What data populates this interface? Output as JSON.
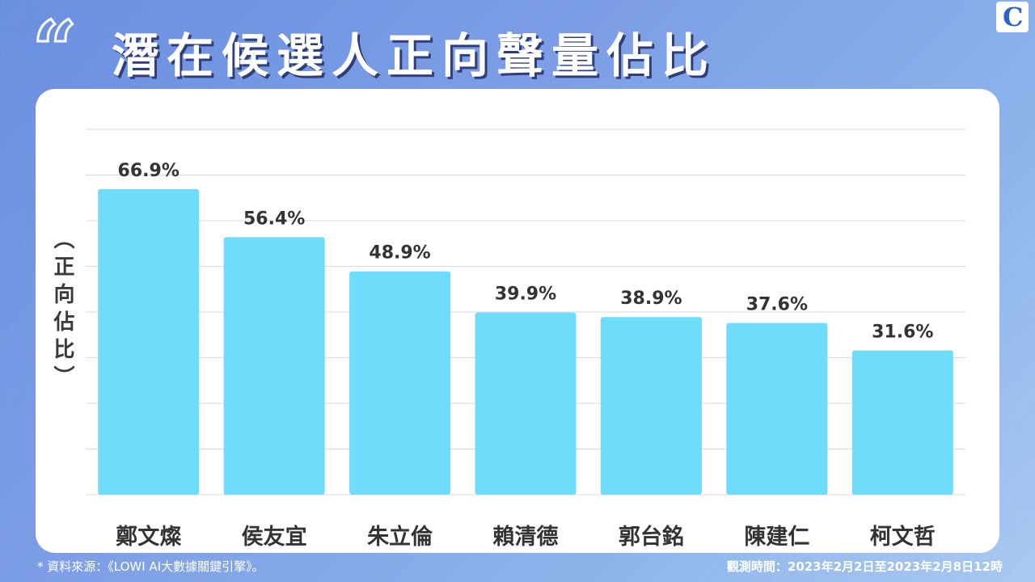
{
  "header": {
    "quote_mark": "“",
    "title": "潛在候選人正向聲量佔比",
    "logo_glyph": "C"
  },
  "chart_data": {
    "type": "bar",
    "title": "潛在候選人正向聲量佔比",
    "ylabel": "（正向佔比）",
    "xlabel": "",
    "categories": [
      "鄭文燦",
      "侯友宜",
      "朱立倫",
      "賴清德",
      "郭台銘",
      "陳建仁",
      "柯文哲"
    ],
    "values": [
      66.9,
      56.4,
      48.9,
      39.9,
      38.9,
      37.6,
      31.6
    ],
    "value_labels": [
      "66.9%",
      "56.4%",
      "48.9%",
      "39.9%",
      "38.9%",
      "37.6%",
      "31.6%"
    ],
    "ylim": [
      0,
      80
    ],
    "grid": true,
    "bar_color": "#6fdcfc",
    "grid_color": "#d9d9d9"
  },
  "footer": {
    "source_note": "* 資料來源：《LOWI AI大數據關鍵引擎》。",
    "time_note": "觀測時間：2023年2月2日至2023年2月8日12時"
  },
  "colors": {
    "background": "#7e9fe6",
    "card": "#ffffff",
    "title_shadow": "#2f3d7a",
    "text_dark": "#3a3a3a"
  }
}
